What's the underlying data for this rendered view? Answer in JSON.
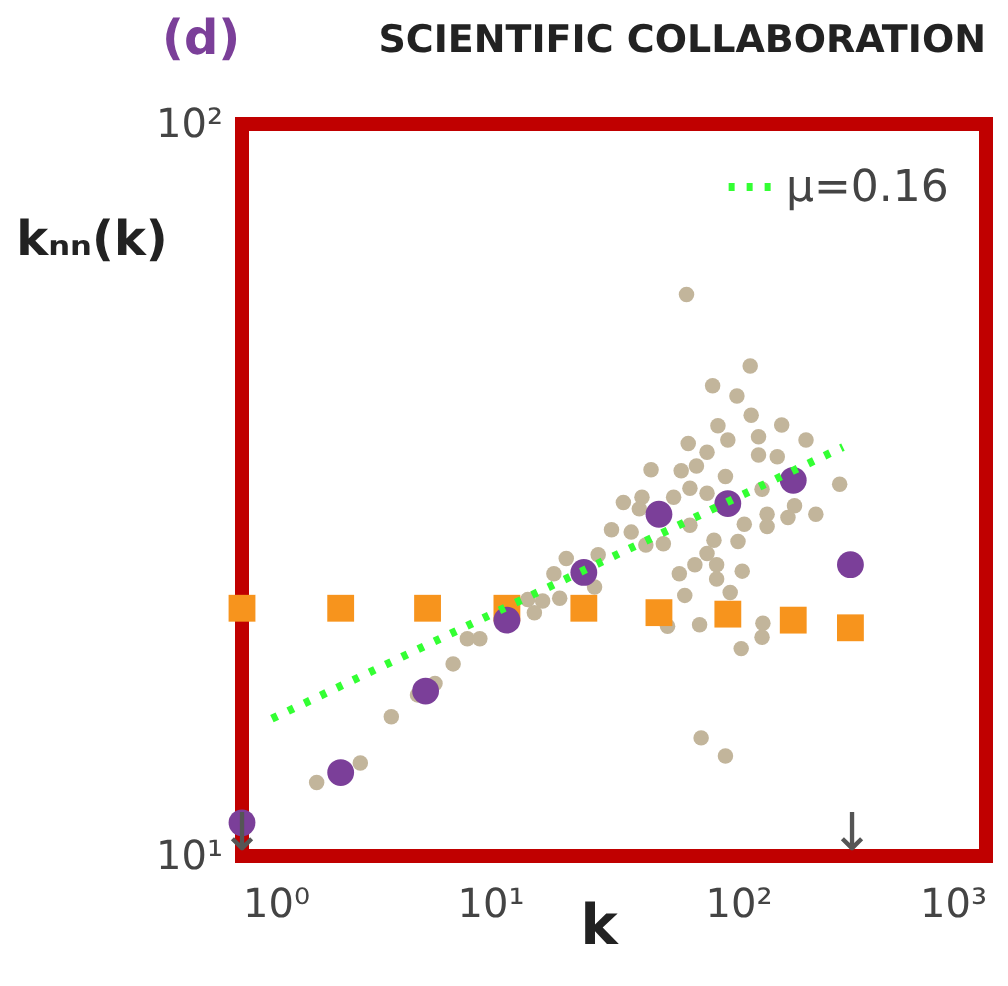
{
  "chart_data": {
    "type": "scatter",
    "title": "SCIENTIFIC COLLABORATION",
    "xlabel": "k",
    "ylabel": "kₙₙ(k)",
    "annotations": [
      "(d)",
      "↓",
      "↓"
    ],
    "log": "xy",
    "xlim": [
      1,
      1000
    ],
    "ylim": [
      10,
      100
    ],
    "xticks": [
      {
        "value": 1,
        "label": "10⁰"
      },
      {
        "value": 10,
        "label": "10¹"
      },
      {
        "value": 100,
        "label": "10²"
      },
      {
        "value": 1000,
        "label": "10³"
      }
    ],
    "yticks": [
      {
        "value": 10,
        "label": "10¹"
      },
      {
        "value": 100,
        "label": "10²"
      }
    ],
    "grid": false,
    "legend": "top right",
    "series": [
      {
        "type": "scatter",
        "marker": "circle",
        "color": "#c2b59b",
        "x": [
          62,
          112,
          79,
          99,
          83,
          113,
          150,
          121,
          188,
          63,
          91,
          75,
          121,
          144,
          44.6,
          59,
          68,
          89,
          257,
          64,
          125,
          41,
          75,
          34.5,
          55,
          169,
          40,
          64,
          131,
          206,
          106,
          131,
          159,
          30.9,
          37.1,
          50,
          42.5,
          27.3,
          100,
          80,
          75,
          67,
          82,
          104,
          18.1,
          20.3,
          58,
          82,
          26.4,
          61,
          93,
          19.1,
          16.3,
          14.2,
          15.1,
          52,
          70,
          126,
          125,
          103,
          8.1,
          9.1,
          7.1,
          6.0,
          5.1,
          4.0,
          3.0,
          2.0,
          71,
          89
        ],
        "values": [
          58.5,
          46.7,
          43.9,
          42.5,
          38.7,
          40.0,
          38.8,
          37.4,
          37.0,
          36.6,
          37.0,
          35.6,
          35.3,
          35.1,
          33.7,
          33.6,
          34.1,
          33.0,
          32.2,
          31.8,
          31.7,
          30.9,
          31.3,
          30.4,
          30.9,
          30.1,
          29.8,
          28.3,
          29.3,
          29.3,
          28.4,
          28.2,
          29.0,
          27.9,
          27.7,
          26.7,
          26.6,
          25.8,
          26.9,
          27.0,
          25.9,
          25.0,
          25.0,
          24.5,
          24.3,
          25.5,
          24.3,
          23.9,
          23.3,
          22.7,
          22.9,
          22.5,
          22.3,
          22.4,
          21.5,
          20.6,
          20.7,
          20.8,
          19.9,
          19.2,
          19.8,
          19.8,
          18.3,
          17.2,
          16.6,
          15.5,
          13.4,
          12.6,
          14.5,
          13.7
        ]
      },
      {
        "type": "scatter",
        "marker": "square",
        "color": "#f7941d",
        "x": [
          1,
          2.5,
          5.6,
          11.7,
          23.9,
          48,
          91,
          167,
          284
        ],
        "values": [
          21.8,
          21.8,
          21.8,
          21.8,
          21.8,
          21.5,
          21.4,
          21.0,
          20.5
        ]
      },
      {
        "type": "scatter",
        "marker": "circle",
        "color": "#7b3f99",
        "x": [
          1,
          2.5,
          5.5,
          11.7,
          23.9,
          48,
          91,
          167,
          284
        ],
        "values": [
          11.1,
          13.0,
          16.8,
          21.0,
          24.4,
          29.3,
          30.3,
          32.6,
          25.0
        ]
      },
      {
        "type": "line",
        "name": "μ=0.16",
        "line_style": "dotted",
        "color": "#33ff33",
        "x": [
          1.32,
          265
        ],
        "values": [
          15.4,
          36.2
        ]
      }
    ]
  }
}
